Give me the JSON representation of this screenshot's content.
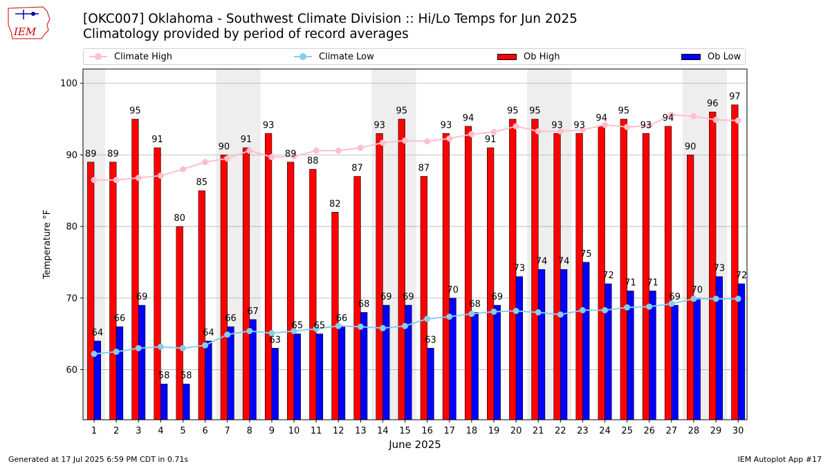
{
  "header": {
    "logo_text": "IEM",
    "title": "[OKC007] Oklahoma - Southwest Climate Division :: Hi/Lo Temps for Jun 2025",
    "subtitle": "Climatology provided by period of record averages"
  },
  "legend": {
    "climate_high": "Climate High",
    "climate_low": "Climate Low",
    "ob_high": "Ob High",
    "ob_low": "Ob Low"
  },
  "footer": {
    "generated": "Generated at 17 Jul 2025 6:59 PM CDT in 0.71s",
    "app": "IEM Autoplot App #17"
  },
  "colors": {
    "ob_high": "#ff0000",
    "ob_low": "#0000ff",
    "climate_high": "#ffc0cb",
    "climate_low": "#87ceeb",
    "weekend_shade": "#eeeeee",
    "logo": "#cc0000"
  },
  "chart_data": {
    "type": "bar",
    "xlabel": "June 2025",
    "ylabel": "Temperature °F",
    "ylim": [
      53,
      102
    ],
    "yticks": [
      60,
      70,
      80,
      90,
      100
    ],
    "grid": "horizontal",
    "legend_position": "top",
    "shaded_days": [
      1,
      7,
      8,
      14,
      15,
      21,
      22,
      28,
      29
    ],
    "categories": [
      "1",
      "2",
      "3",
      "4",
      "5",
      "6",
      "7",
      "8",
      "9",
      "10",
      "11",
      "12",
      "13",
      "14",
      "15",
      "16",
      "17",
      "18",
      "19",
      "20",
      "21",
      "22",
      "23",
      "24",
      "25",
      "26",
      "27",
      "28",
      "29",
      "30"
    ],
    "series": [
      {
        "name": "Ob High",
        "kind": "bar",
        "values": [
          89,
          89,
          95,
          91,
          80,
          85,
          90,
          91,
          93,
          89,
          88,
          82,
          87,
          93,
          95,
          87,
          93,
          94,
          91,
          95,
          95,
          93,
          93,
          94,
          95,
          93,
          94,
          90,
          96,
          97
        ]
      },
      {
        "name": "Ob Low",
        "kind": "bar",
        "values": [
          64,
          66,
          69,
          58,
          58,
          64,
          66,
          67,
          63,
          65,
          65,
          66,
          68,
          69,
          69,
          63,
          70,
          68,
          69,
          73,
          74,
          74,
          75,
          72,
          71,
          71,
          69,
          70,
          73,
          72
        ]
      },
      {
        "name": "Climate High",
        "kind": "line",
        "values": [
          86.5,
          86.5,
          86.8,
          87.1,
          88.0,
          89.0,
          89.5,
          90.6,
          89.7,
          89.8,
          90.6,
          90.6,
          91.0,
          91.7,
          92.0,
          91.9,
          92.3,
          92.9,
          93.2,
          94.0,
          93.3,
          93.3,
          93.5,
          94.2,
          93.9,
          94.1,
          95.6,
          95.4,
          94.9,
          94.8
        ]
      },
      {
        "name": "Climate Low",
        "kind": "line",
        "values": [
          62.2,
          62.5,
          63.0,
          63.2,
          63.0,
          63.4,
          64.9,
          65.4,
          65.1,
          65.4,
          65.7,
          66.1,
          66.0,
          65.8,
          66.1,
          67.1,
          67.4,
          67.8,
          68.1,
          68.2,
          68.0,
          67.7,
          68.3,
          68.3,
          68.7,
          68.8,
          69.2,
          69.9,
          69.9,
          69.9
        ]
      }
    ]
  }
}
